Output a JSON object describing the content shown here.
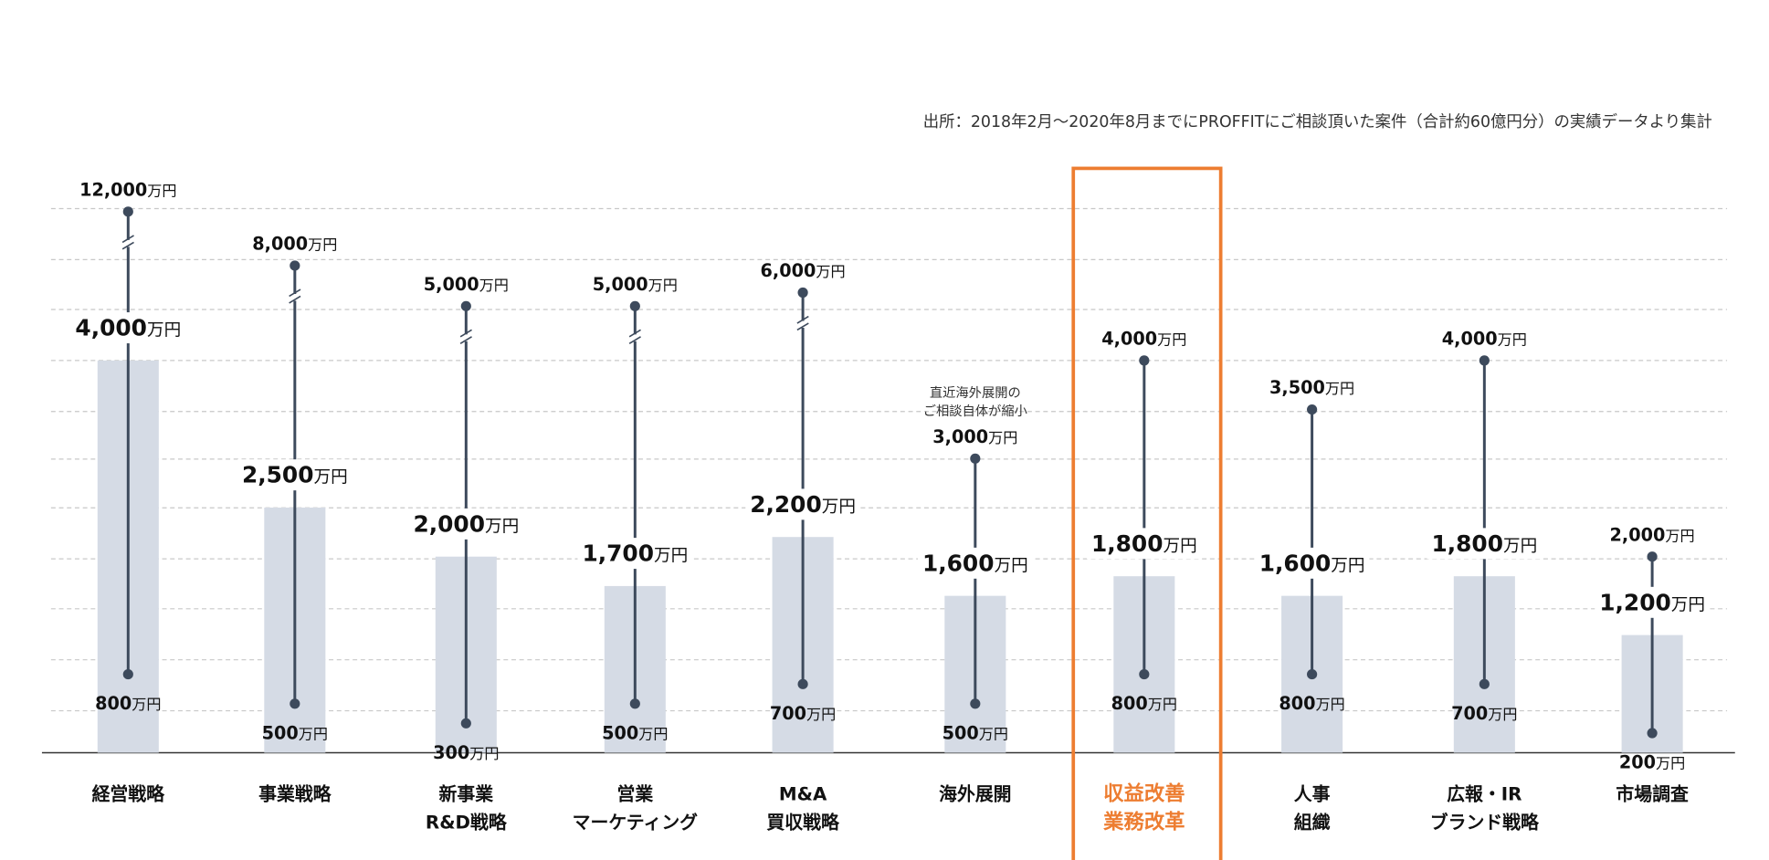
{
  "source_note": "出所：2018年2月〜2020年8月までにPROFFITにご相談頂いた案件（合計約60億円分）の実績データより集計",
  "chart_data": {
    "type": "bar",
    "unit": "万円",
    "description_of_marks": "bar = median/typical value; vertical line = range from min to max",
    "grid": true,
    "colors": {
      "bar": "#d5dbe5",
      "range_line": "#3d4a5c",
      "highlight": "#ed7d31"
    },
    "categories": [
      {
        "label": [
          "経営戦略"
        ],
        "min": 800,
        "value": 4000,
        "max": 12000,
        "axis_break": true
      },
      {
        "label": [
          "事業戦略"
        ],
        "min": 500,
        "value": 2500,
        "max": 8000,
        "axis_break": true
      },
      {
        "label": [
          "新事業",
          "R&D戦略"
        ],
        "min": 300,
        "value": 2000,
        "max": 5000,
        "axis_break": true
      },
      {
        "label": [
          "営業",
          "マーケティング"
        ],
        "min": 500,
        "value": 1700,
        "max": 5000,
        "axis_break": true
      },
      {
        "label": [
          "M&A",
          "買収戦略"
        ],
        "min": 700,
        "value": 2200,
        "max": 6000,
        "axis_break": true
      },
      {
        "label": [
          "海外展開"
        ],
        "min": 500,
        "value": 1600,
        "max": 3000,
        "note": [
          "直近海外展開の",
          "ご相談自体が縮小"
        ]
      },
      {
        "label": [
          "収益改善",
          "業務改革"
        ],
        "min": 800,
        "value": 1800,
        "max": 4000,
        "highlighted": true
      },
      {
        "label": [
          "人事",
          "組織"
        ],
        "min": 800,
        "value": 1600,
        "max": 3500
      },
      {
        "label": [
          "広報・IR",
          "ブランド戦略"
        ],
        "min": 700,
        "value": 1800,
        "max": 4000
      },
      {
        "label": [
          "市場調査"
        ],
        "min": 200,
        "value": 1200,
        "max": 2000
      }
    ]
  }
}
